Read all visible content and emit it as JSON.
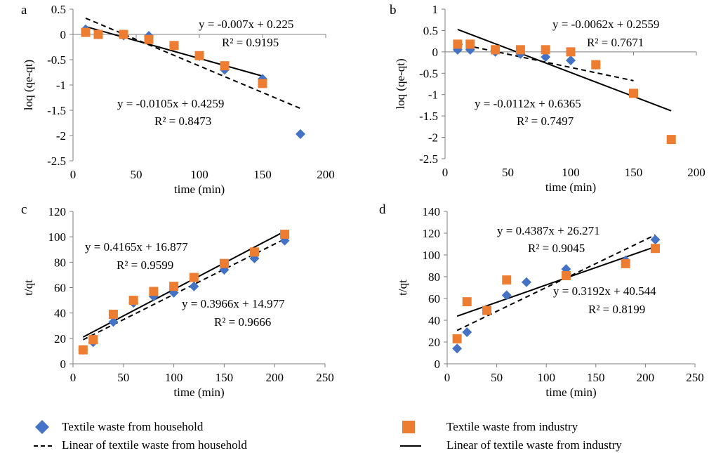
{
  "colors": {
    "household": "#4472C4",
    "industry": "#ED7D31",
    "axis": "#808080",
    "line": "#000000"
  },
  "chart_data": [
    {
      "panel_label": "a",
      "type": "scatter",
      "xlabel": "time (min)",
      "ylabel": "loq (qe-qt)",
      "xlim": [
        0,
        200
      ],
      "xticks": [
        0,
        50,
        100,
        150,
        200
      ],
      "ylim": [
        -2.5,
        0.5
      ],
      "yticks": [
        -2.5,
        -2,
        -1.5,
        -1,
        -0.5,
        0,
        0.5
      ],
      "series": [
        {
          "name": "Textile waste from household",
          "marker": "diamond",
          "x": [
            10,
            20,
            40,
            60,
            80,
            100,
            120,
            150,
            180
          ],
          "y": [
            0.1,
            0.0,
            -0.02,
            -0.03,
            -0.22,
            -0.43,
            -0.7,
            -0.88,
            -1.97
          ]
        },
        {
          "name": "Textile waste from industry",
          "marker": "square",
          "x": [
            10,
            20,
            40,
            60,
            80,
            100,
            120,
            150
          ],
          "y": [
            0.04,
            0.0,
            0.0,
            -0.1,
            -0.22,
            -0.42,
            -0.62,
            -0.97
          ]
        }
      ],
      "fits": [
        {
          "series": "household",
          "style": "dashed",
          "slope": -0.0105,
          "intercept": 0.4259,
          "x_range": [
            10,
            180
          ]
        },
        {
          "series": "industry",
          "style": "solid",
          "slope": -0.007,
          "intercept": 0.225,
          "x_range": [
            10,
            150
          ]
        }
      ],
      "annotations": [
        {
          "lines": [
            "y = -0.007x + 0.225",
            "R² = 0.9195"
          ]
        },
        {
          "lines": [
            "y = -0.0105x + 0.4259",
            "R² = 0.8473"
          ]
        }
      ]
    },
    {
      "panel_label": "b",
      "type": "scatter",
      "xlabel": "time (min)",
      "ylabel": "loq (qe-qt)",
      "xlim": [
        0,
        200
      ],
      "xticks": [
        0,
        50,
        100,
        150,
        200
      ],
      "ylim": [
        -2.5,
        1
      ],
      "yticks": [
        -2.5,
        -2,
        -1.5,
        -1,
        -0.5,
        0,
        0.5,
        1
      ],
      "series": [
        {
          "name": "Textile waste from household",
          "marker": "diamond",
          "x": [
            10,
            20,
            40,
            60,
            80,
            100,
            120
          ],
          "y": [
            0.05,
            0.05,
            0.0,
            -0.05,
            -0.12,
            -0.2,
            -0.3
          ]
        },
        {
          "name": "Textile waste from industry",
          "marker": "square",
          "x": [
            10,
            20,
            40,
            60,
            80,
            100,
            120,
            150,
            180
          ],
          "y": [
            0.18,
            0.18,
            0.05,
            0.05,
            0.05,
            0.0,
            -0.3,
            -0.97,
            -2.05
          ]
        }
      ],
      "fits": [
        {
          "series": "household",
          "style": "dashed",
          "slope": -0.0062,
          "intercept": 0.2559,
          "x_range": [
            10,
            150
          ]
        },
        {
          "series": "industry",
          "style": "solid",
          "slope": -0.0112,
          "intercept": 0.6365,
          "x_range": [
            10,
            180
          ]
        }
      ],
      "annotations": [
        {
          "lines": [
            "y = -0.0062x + 0.2559",
            "R² = 0.7671"
          ]
        },
        {
          "lines": [
            "y = -0.0112x + 0.6365",
            "R² = 0.7497"
          ]
        }
      ]
    },
    {
      "panel_label": "c",
      "type": "scatter",
      "xlabel": "time (min)",
      "ylabel": "t/qt",
      "xlim": [
        0,
        250
      ],
      "xticks": [
        0,
        50,
        100,
        150,
        200,
        250
      ],
      "ylim": [
        0,
        120
      ],
      "yticks": [
        0,
        20,
        40,
        60,
        80,
        100,
        120
      ],
      "series": [
        {
          "name": "Textile waste from household",
          "marker": "diamond",
          "x": [
            10,
            20,
            40,
            60,
            80,
            100,
            120,
            150,
            180,
            210
          ],
          "y": [
            11,
            17,
            33,
            48,
            53,
            56,
            61,
            74,
            83,
            97
          ]
        },
        {
          "name": "Textile waste from industry",
          "marker": "square",
          "x": [
            10,
            20,
            40,
            60,
            80,
            100,
            120,
            150,
            180,
            210
          ],
          "y": [
            11,
            19,
            39,
            50,
            57,
            61,
            68,
            79,
            88,
            102
          ]
        }
      ],
      "fits": [
        {
          "series": "household",
          "style": "dashed",
          "slope": 0.3966,
          "intercept": 14.977,
          "x_range": [
            10,
            210
          ]
        },
        {
          "series": "industry",
          "style": "solid",
          "slope": 0.4165,
          "intercept": 16.877,
          "x_range": [
            10,
            210
          ]
        }
      ],
      "annotations": [
        {
          "lines": [
            "y = 0.4165x + 16.877",
            "R² = 0.9599"
          ]
        },
        {
          "lines": [
            "y = 0.3966x + 14.977",
            "R² = 0.9666"
          ]
        }
      ]
    },
    {
      "panel_label": "d",
      "type": "scatter",
      "xlabel": "time (min)",
      "ylabel": "t/qt",
      "xlim": [
        0,
        250
      ],
      "xticks": [
        0,
        50,
        100,
        150,
        200,
        250
      ],
      "ylim": [
        0,
        140
      ],
      "yticks": [
        0,
        20,
        40,
        60,
        80,
        100,
        120,
        140
      ],
      "series": [
        {
          "name": "Textile waste from household",
          "marker": "diamond",
          "x": [
            10,
            20,
            40,
            60,
            80,
            120,
            180,
            210
          ],
          "y": [
            14,
            29,
            49,
            63,
            75,
            87,
            95,
            114
          ]
        },
        {
          "name": "Textile waste from industry",
          "marker": "square",
          "x": [
            10,
            20,
            40,
            60,
            120,
            180,
            210
          ],
          "y": [
            23,
            57,
            49,
            77,
            81,
            92,
            106
          ]
        }
      ],
      "fits": [
        {
          "series": "household",
          "style": "dashed",
          "slope": 0.4387,
          "intercept": 26.271,
          "x_range": [
            10,
            210
          ]
        },
        {
          "series": "industry",
          "style": "solid",
          "slope": 0.3192,
          "intercept": 40.544,
          "x_range": [
            10,
            210
          ]
        }
      ],
      "annotations": [
        {
          "lines": [
            "y = 0.4387x + 26.271",
            "R² = 0.9045"
          ]
        },
        {
          "lines": [
            "y = 0.3192x + 40.544",
            "R² = 0.8199"
          ]
        }
      ]
    }
  ],
  "legend": {
    "household_points": "Textile waste from household",
    "industry_points": "Textile waste from industry",
    "household_fit": "Linear of textile waste from household",
    "industry_fit": "Linear of textile waste from industry"
  }
}
